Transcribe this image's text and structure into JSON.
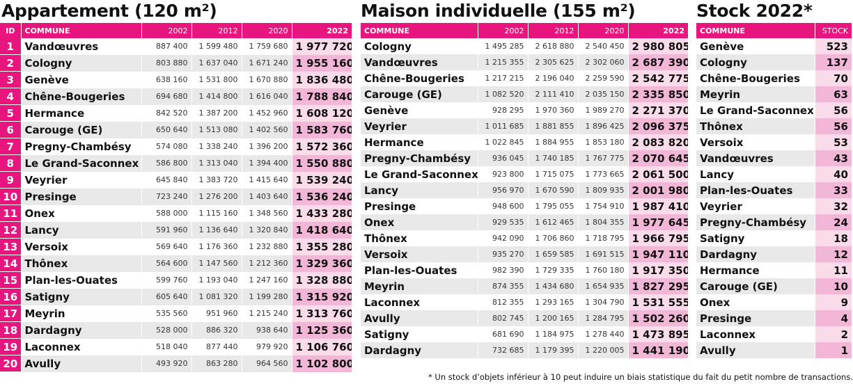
{
  "appartement": {
    "title": "Appartement (120 m²)",
    "headers": {
      "id": "ID",
      "commune": "COMMUNE",
      "y1": "2002",
      "y2": "2012",
      "y3": "2020",
      "y4": "2022"
    },
    "rows": [
      {
        "id": "1",
        "name": "Vandœuvres",
        "v2002": "887 400",
        "v2012": "1 599 480",
        "v2020": "1 759 680",
        "v2022": "1 977 720"
      },
      {
        "id": "2",
        "name": "Cologny",
        "v2002": "803 880",
        "v2012": "1 637 040",
        "v2020": "1 671 240",
        "v2022": "1 955 160"
      },
      {
        "id": "3",
        "name": "Genève",
        "v2002": "638 160",
        "v2012": "1 531 800",
        "v2020": "1 670 880",
        "v2022": "1 836 480"
      },
      {
        "id": "4",
        "name": "Chêne-Bougeries",
        "v2002": "694 680",
        "v2012": "1 414 800",
        "v2020": "1 616 040",
        "v2022": "1 788 840"
      },
      {
        "id": "5",
        "name": "Hermance",
        "v2002": "842 520",
        "v2012": "1 387 200",
        "v2020": "1 452 960",
        "v2022": "1 608 120"
      },
      {
        "id": "6",
        "name": "Carouge (GE)",
        "v2002": "650 640",
        "v2012": "1 513 080",
        "v2020": "1 402 560",
        "v2022": "1 583 760"
      },
      {
        "id": "7",
        "name": "Pregny-Chambésy",
        "v2002": "574 080",
        "v2012": "1 338 240",
        "v2020": "1 396 200",
        "v2022": "1 572 360"
      },
      {
        "id": "8",
        "name": "Le Grand-Saconnex",
        "v2002": "586 800",
        "v2012": "1 313 040",
        "v2020": "1 394 400",
        "v2022": "1 550 880"
      },
      {
        "id": "9",
        "name": "Veyrier",
        "v2002": "645 840",
        "v2012": "1 383 720",
        "v2020": "1 415 640",
        "v2022": "1 539 240"
      },
      {
        "id": "10",
        "name": "Presinge",
        "v2002": "723 240",
        "v2012": "1 276 200",
        "v2020": "1 403 640",
        "v2022": "1 536 240"
      },
      {
        "id": "11",
        "name": "Onex",
        "v2002": "588 000",
        "v2012": "1 115 160",
        "v2020": "1 348 560",
        "v2022": "1 433 280"
      },
      {
        "id": "12",
        "name": "Lancy",
        "v2002": "591 960",
        "v2012": "1 136 640",
        "v2020": "1 320 840",
        "v2022": "1 418 640"
      },
      {
        "id": "13",
        "name": "Versoix",
        "v2002": "569 640",
        "v2012": "1 176 360",
        "v2020": "1 232 880",
        "v2022": "1 355 280"
      },
      {
        "id": "14",
        "name": "Thônex",
        "v2002": "564 600",
        "v2012": "1 147 560",
        "v2020": "1 212 360",
        "v2022": "1 329 360"
      },
      {
        "id": "15",
        "name": "Plan-les-Ouates",
        "v2002": "599 760",
        "v2012": "1 193 040",
        "v2020": "1 247 160",
        "v2022": "1 328 880"
      },
      {
        "id": "16",
        "name": "Satigny",
        "v2002": "605 640",
        "v2012": "1 081 320",
        "v2020": "1 199 280",
        "v2022": "1 315 920"
      },
      {
        "id": "17",
        "name": "Meyrin",
        "v2002": "535 560",
        "v2012": "951 960",
        "v2020": "1 215 240",
        "v2022": "1 313 760"
      },
      {
        "id": "18",
        "name": "Dardagny",
        "v2002": "528 000",
        "v2012": "886 320",
        "v2020": "938 640",
        "v2022": "1 125 360"
      },
      {
        "id": "19",
        "name": "Laconnex",
        "v2002": "518 040",
        "v2012": "877 440",
        "v2020": "979 920",
        "v2022": "1 106 760"
      },
      {
        "id": "20",
        "name": "Avully",
        "v2002": "493 920",
        "v2012": "863 280",
        "v2020": "964 560",
        "v2022": "1 102 800"
      }
    ]
  },
  "maison": {
    "title": "Maison individuelle (155 m²)",
    "headers": {
      "commune": "COMMUNE",
      "y1": "2002",
      "y2": "2012",
      "y3": "2020",
      "y4": "2022"
    },
    "rows": [
      {
        "name": "Cologny",
        "v2002": "1 495 285",
        "v2012": "2 618 880",
        "v2020": "2 540 450",
        "v2022": "2 980 805"
      },
      {
        "name": "Vandœuvres",
        "v2002": "1 215 355",
        "v2012": "2 305 625",
        "v2020": "2 302 060",
        "v2022": "2 687 390"
      },
      {
        "name": "Chêne-Bougeries",
        "v2002": "1 217 215",
        "v2012": "2 196 040",
        "v2020": "2 259 590",
        "v2022": "2 542 775"
      },
      {
        "name": "Carouge (GE)",
        "v2002": "1 082 520",
        "v2012": "2 111 410",
        "v2020": "2 035 150",
        "v2022": "2 335 850"
      },
      {
        "name": "Genève",
        "v2002": "928 295",
        "v2012": "1 970 360",
        "v2020": "1 989 270",
        "v2022": "2 271 370"
      },
      {
        "name": "Veyrier",
        "v2002": "1 011 685",
        "v2012": "1 881 855",
        "v2020": "1 896 425",
        "v2022": "2 096 375"
      },
      {
        "name": "Hermance",
        "v2002": "1 022 845",
        "v2012": "1 884 955",
        "v2020": "1 853 180",
        "v2022": "2 083 820"
      },
      {
        "name": "Pregny-Chambésy",
        "v2002": "936 045",
        "v2012": "1 740 185",
        "v2020": "1 767 775",
        "v2022": "2 070 645"
      },
      {
        "name": "Le Grand-Saconnex",
        "v2002": "923 800",
        "v2012": "1 715 075",
        "v2020": "1 773 665",
        "v2022": "2 061 500"
      },
      {
        "name": "Lancy",
        "v2002": "956 970",
        "v2012": "1 670 590",
        "v2020": "1 809 935",
        "v2022": "2 001 980"
      },
      {
        "name": "Presinge",
        "v2002": "948 600",
        "v2012": "1 795 055",
        "v2020": "1 754 910",
        "v2022": "1 987 410"
      },
      {
        "name": "Onex",
        "v2002": "929 535",
        "v2012": "1 612 465",
        "v2020": "1 804 355",
        "v2022": "1 977 645"
      },
      {
        "name": "Thônex",
        "v2002": "942 090",
        "v2012": "1 706 860",
        "v2020": "1 718 795",
        "v2022": "1 966 795"
      },
      {
        "name": "Versoix",
        "v2002": "935 270",
        "v2012": "1 659 585",
        "v2020": "1 691 515",
        "v2022": "1 947 110"
      },
      {
        "name": "Plan-les-Ouates",
        "v2002": "982 390",
        "v2012": "1 729 335",
        "v2020": "1 760 180",
        "v2022": "1 917 350"
      },
      {
        "name": "Meyrin",
        "v2002": "874 355",
        "v2012": "1 434 680",
        "v2020": "1 654 935",
        "v2022": "1 827 295"
      },
      {
        "name": "Laconnex",
        "v2002": "812 355",
        "v2012": "1 293 165",
        "v2020": "1 304 790",
        "v2022": "1 531 555"
      },
      {
        "name": "Avully",
        "v2002": "802 745",
        "v2012": "1 200 165",
        "v2020": "1 284 795",
        "v2022": "1 502 260"
      },
      {
        "name": "Satigny",
        "v2002": "681 690",
        "v2012": "1 184 975",
        "v2020": "1 278 440",
        "v2022": "1 473 895"
      },
      {
        "name": "Dardagny",
        "v2002": "732 685",
        "v2012": "1 179 395",
        "v2020": "1 220 005",
        "v2022": "1 441 190"
      }
    ]
  },
  "stock": {
    "title": "Stock 2022*",
    "headers": {
      "commune": "COMMUNE",
      "stock": "STOCK"
    },
    "rows": [
      {
        "name": "Genève",
        "stock": "523"
      },
      {
        "name": "Cologny",
        "stock": "137"
      },
      {
        "name": "Chêne-Bougeries",
        "stock": "70"
      },
      {
        "name": "Meyrin",
        "stock": "63"
      },
      {
        "name": "Le Grand-Saconnex",
        "stock": "56"
      },
      {
        "name": "Thônex",
        "stock": "56"
      },
      {
        "name": "Versoix",
        "stock": "53"
      },
      {
        "name": "Vandœuvres",
        "stock": "43"
      },
      {
        "name": "Lancy",
        "stock": "40"
      },
      {
        "name": "Plan-les-Ouates",
        "stock": "33"
      },
      {
        "name": "Veyrier",
        "stock": "32"
      },
      {
        "name": "Pregny-Chambésy",
        "stock": "24"
      },
      {
        "name": "Satigny",
        "stock": "18"
      },
      {
        "name": "Dardagny",
        "stock": "12"
      },
      {
        "name": "Hermance",
        "stock": "11"
      },
      {
        "name": "Carouge (GE)",
        "stock": "10"
      },
      {
        "name": "Onex",
        "stock": "9"
      },
      {
        "name": "Presinge",
        "stock": "4"
      },
      {
        "name": "Laconnex",
        "stock": "2"
      },
      {
        "name": "Avully",
        "stock": "1"
      }
    ]
  },
  "footnote": "* Un stock d’objets inférieur à 10 peut induire un biais statistique du fait du petit nombre de transactions.",
  "colors": {
    "accent": "#e8157f",
    "row_alt": "#e8e8e8",
    "highlight_light": "#f9dbea",
    "highlight_dark": "#f2b6d6"
  }
}
